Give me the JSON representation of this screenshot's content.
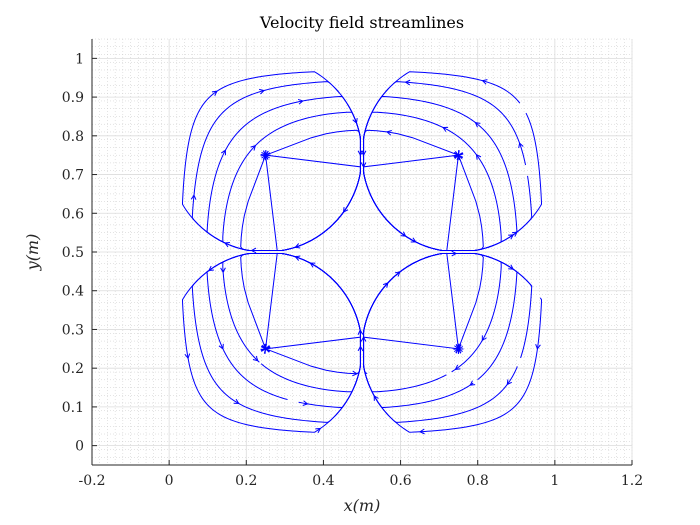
{
  "chart_data": {
    "type": "streamline",
    "title": "Velocity field streamlines",
    "xlabel": "x(m)",
    "ylabel": "y(m)",
    "xlim": [
      -0.2,
      1.2
    ],
    "ylim": [
      -0.05,
      1.05
    ],
    "x_ticks": [
      -0.2,
      0,
      0.2,
      0.4,
      0.6,
      0.8,
      1,
      1.2
    ],
    "x_tick_labels": [
      "-0.2",
      "0",
      "0.2",
      "0.4",
      "0.6",
      "0.8",
      "1",
      "1.2"
    ],
    "y_ticks": [
      0,
      0.1,
      0.2,
      0.3,
      0.4,
      0.5,
      0.6,
      0.7,
      0.8,
      0.9,
      1
    ],
    "y_tick_labels": [
      "0",
      "0.1",
      "0.2",
      "0.3",
      "0.4",
      "0.5",
      "0.6",
      "0.7",
      "0.8",
      "0.9",
      "1"
    ],
    "grid": true,
    "minor_grid": true,
    "line_color": "#0000ff",
    "cells": [
      {
        "name": "bottom-left",
        "center": [
          0.25,
          0.25
        ],
        "x_range": [
          0,
          0.5
        ],
        "y_range": [
          0,
          0.5
        ],
        "rotation": "counterclockwise"
      },
      {
        "name": "bottom-right",
        "center": [
          0.75,
          0.25
        ],
        "x_range": [
          0.5,
          1
        ],
        "y_range": [
          0,
          0.5
        ],
        "rotation": "clockwise"
      },
      {
        "name": "top-left",
        "center": [
          0.25,
          0.75
        ],
        "x_range": [
          0,
          0.5
        ],
        "y_range": [
          0.5,
          1
        ],
        "rotation": "clockwise"
      },
      {
        "name": "top-right",
        "center": [
          0.75,
          0.75
        ],
        "x_range": [
          0.5,
          1
        ],
        "y_range": [
          0.5,
          1
        ],
        "rotation": "counterclockwise"
      }
    ],
    "streamline_levels": [
      0.96,
      0.9,
      0.8,
      0.68,
      0.55,
      0.42,
      0.3,
      0.18,
      0.1
    ]
  }
}
